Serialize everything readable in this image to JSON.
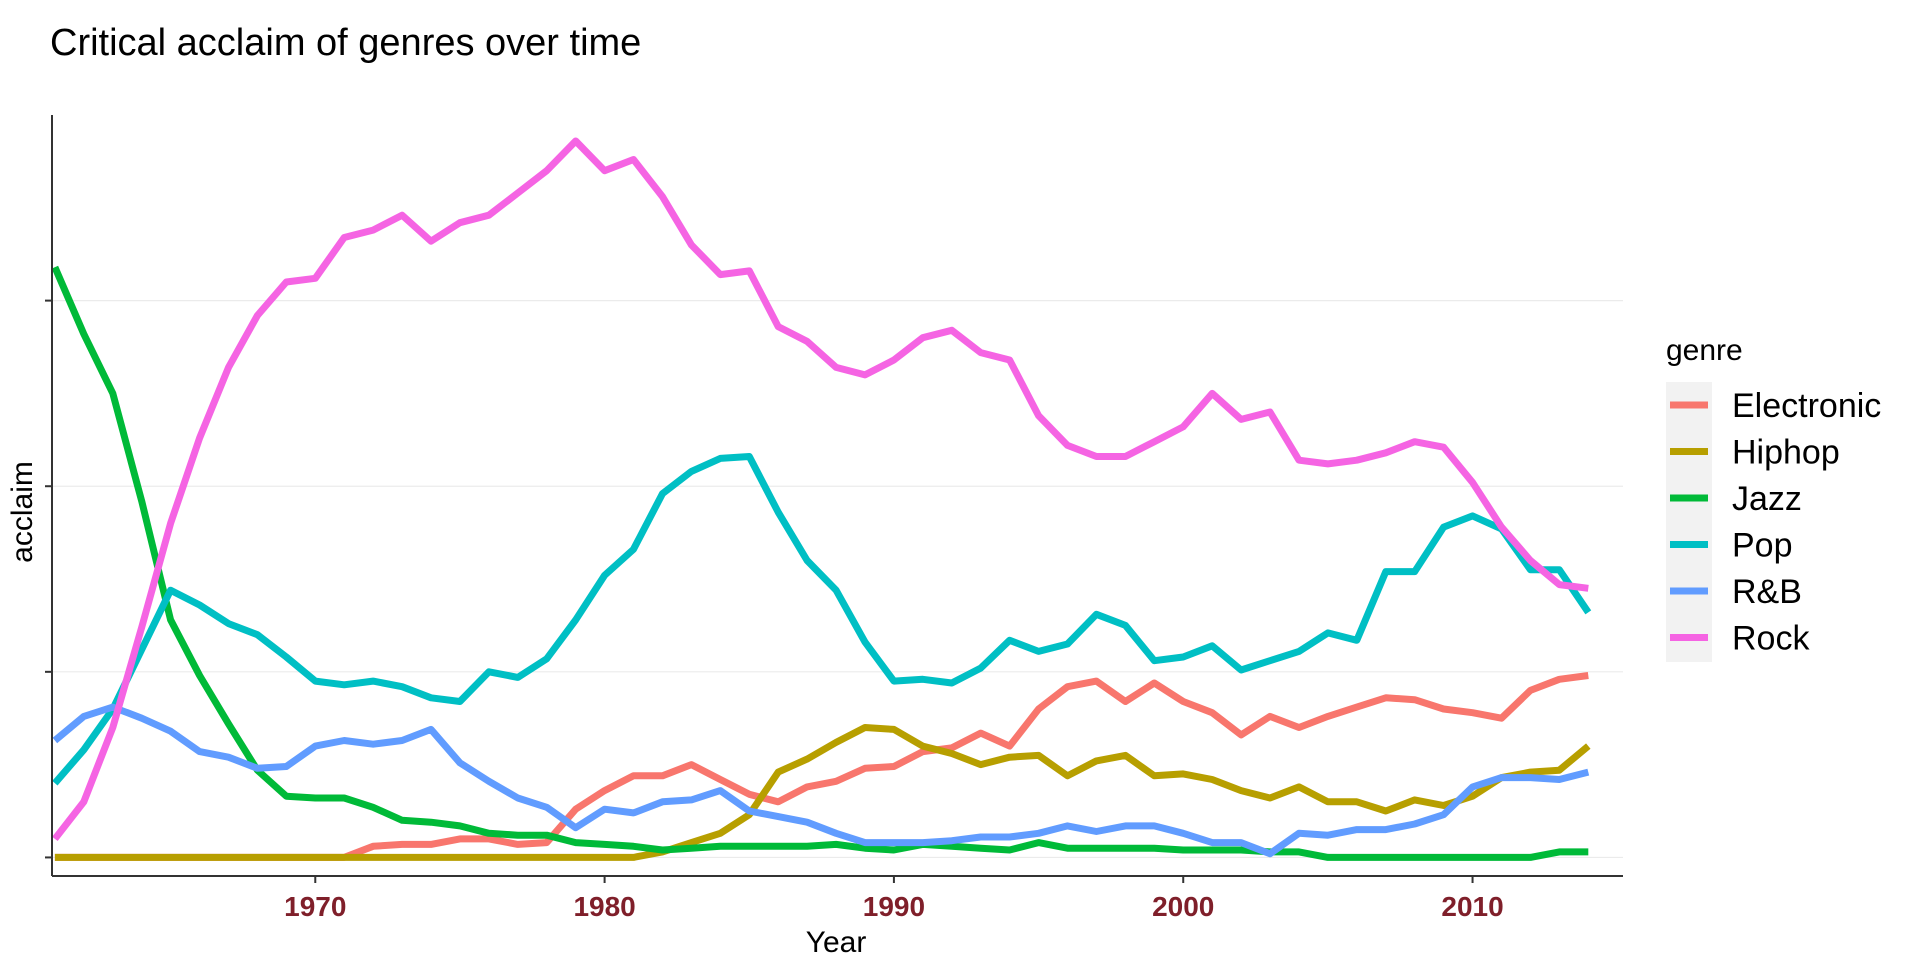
{
  "chart_data": {
    "type": "line",
    "title": "Critical acclaim of genres over time",
    "xlabel": "Year",
    "ylabel": "acclaim",
    "xlim": [
      1960.9,
      2015.2
    ],
    "ylim": [
      -0.5,
      20.0
    ],
    "x_ticks": [
      1970,
      1980,
      1990,
      2000,
      2010
    ],
    "y_ticks_unlabeled": [
      0,
      5,
      10,
      15
    ],
    "grid": true,
    "legend": {
      "title": "genre",
      "position": "right"
    },
    "x": [
      1961,
      1962,
      1963,
      1964,
      1965,
      1966,
      1967,
      1968,
      1969,
      1970,
      1971,
      1972,
      1973,
      1974,
      1975,
      1976,
      1977,
      1978,
      1979,
      1980,
      1981,
      1982,
      1983,
      1984,
      1985,
      1986,
      1987,
      1988,
      1989,
      1990,
      1991,
      1992,
      1993,
      1994,
      1995,
      1996,
      1997,
      1998,
      1999,
      2000,
      2001,
      2002,
      2003,
      2004,
      2005,
      2006,
      2007,
      2008,
      2009,
      2010,
      2011,
      2012,
      2013,
      2014
    ],
    "series": [
      {
        "name": "Electronic",
        "color": "#F8766D",
        "values": [
          0,
          0,
          0,
          0,
          0,
          0,
          0,
          0,
          0,
          0,
          0,
          0.3,
          0.35,
          0.35,
          0.5,
          0.5,
          0.35,
          0.4,
          1.3,
          1.8,
          2.2,
          2.2,
          2.5,
          2.1,
          1.7,
          1.5,
          1.9,
          2.05,
          2.4,
          2.45,
          2.85,
          2.95,
          3.35,
          3.0,
          4.0,
          4.6,
          4.75,
          4.2,
          4.7,
          4.2,
          3.9,
          3.3,
          3.8,
          3.5,
          3.8,
          4.05,
          4.3,
          4.25,
          4.0,
          3.9,
          3.75,
          4.5,
          4.8,
          4.9
        ]
      },
      {
        "name": "Hiphop",
        "color": "#B79F00",
        "values": [
          0,
          0,
          0,
          0,
          0,
          0,
          0,
          0,
          0,
          0,
          0,
          0,
          0,
          0,
          0,
          0,
          0,
          0,
          0,
          0,
          0,
          0.15,
          0.4,
          0.65,
          1.15,
          2.3,
          2.65,
          3.1,
          3.5,
          3.45,
          3.0,
          2.8,
          2.5,
          2.7,
          2.75,
          2.2,
          2.6,
          2.75,
          2.2,
          2.25,
          2.1,
          1.8,
          1.6,
          1.9,
          1.5,
          1.5,
          1.25,
          1.55,
          1.4,
          1.65,
          2.15,
          2.3,
          2.35,
          3.0
        ]
      },
      {
        "name": "Jazz",
        "color": "#00BA38",
        "values": [
          15.9,
          14.1,
          12.5,
          9.6,
          6.4,
          4.9,
          3.6,
          2.35,
          1.65,
          1.6,
          1.6,
          1.35,
          1.0,
          0.95,
          0.85,
          0.65,
          0.6,
          0.6,
          0.4,
          0.35,
          0.3,
          0.2,
          0.25,
          0.3,
          0.3,
          0.3,
          0.3,
          0.35,
          0.25,
          0.2,
          0.35,
          0.3,
          0.25,
          0.2,
          0.4,
          0.25,
          0.25,
          0.25,
          0.25,
          0.2,
          0.2,
          0.2,
          0.15,
          0.15,
          0,
          0,
          0,
          0,
          0,
          0,
          0,
          0,
          0.15,
          0.15
        ]
      },
      {
        "name": "Pop",
        "color": "#00BFC4",
        "values": [
          2.0,
          2.9,
          4.0,
          5.6,
          7.2,
          6.8,
          6.3,
          6.0,
          5.4,
          4.75,
          4.65,
          4.75,
          4.6,
          4.3,
          4.2,
          5.0,
          4.85,
          5.35,
          6.4,
          7.6,
          8.3,
          9.8,
          10.4,
          10.75,
          10.8,
          9.3,
          8.0,
          7.2,
          5.8,
          4.75,
          4.8,
          4.7,
          5.1,
          5.85,
          5.55,
          5.75,
          6.55,
          6.25,
          5.3,
          5.4,
          5.7,
          5.05,
          5.3,
          5.55,
          6.05,
          5.85,
          7.7,
          7.7,
          8.9,
          9.2,
          8.85,
          7.75,
          7.75,
          6.6
        ]
      },
      {
        "name": "R&B",
        "color": "#619CFF",
        "values": [
          3.15,
          3.8,
          4.05,
          3.75,
          3.4,
          2.85,
          2.7,
          2.4,
          2.45,
          3.0,
          3.15,
          3.05,
          3.15,
          3.45,
          2.55,
          2.05,
          1.6,
          1.35,
          0.8,
          1.3,
          1.2,
          1.5,
          1.55,
          1.8,
          1.25,
          1.1,
          0.95,
          0.65,
          0.4,
          0.4,
          0.4,
          0.45,
          0.55,
          0.55,
          0.65,
          0.85,
          0.7,
          0.85,
          0.85,
          0.65,
          0.4,
          0.4,
          0.1,
          0.65,
          0.6,
          0.75,
          0.75,
          0.9,
          1.15,
          1.9,
          2.15,
          2.15,
          2.1,
          2.3
        ]
      },
      {
        "name": "Rock",
        "color": "#F564E3",
        "values": [
          0.5,
          1.5,
          3.5,
          6.2,
          9.0,
          11.3,
          13.2,
          14.6,
          15.5,
          15.6,
          16.7,
          16.9,
          17.3,
          16.6,
          17.1,
          17.3,
          17.9,
          18.5,
          19.3,
          18.5,
          18.8,
          17.8,
          16.5,
          15.7,
          15.8,
          14.3,
          13.9,
          13.2,
          13.0,
          13.4,
          14.0,
          14.2,
          13.6,
          13.4,
          11.9,
          11.1,
          10.8,
          10.8,
          11.2,
          11.6,
          12.5,
          11.8,
          12.0,
          10.7,
          10.6,
          10.7,
          10.9,
          11.2,
          11.05,
          10.1,
          8.9,
          8.0,
          7.35,
          7.25
        ]
      }
    ]
  }
}
